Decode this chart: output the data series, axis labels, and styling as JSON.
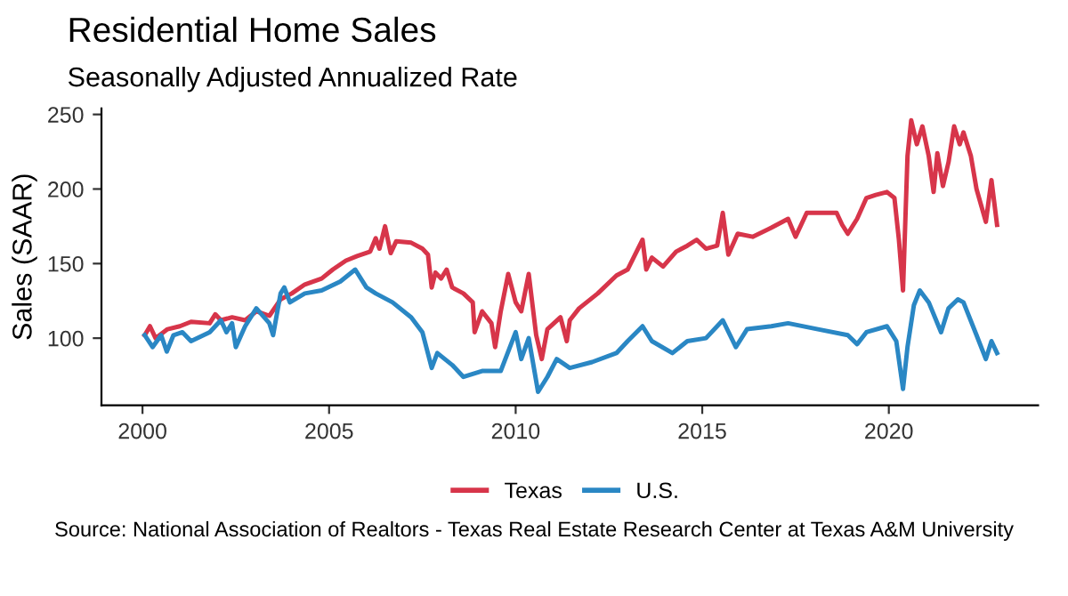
{
  "chart_data": {
    "type": "line",
    "title": "Residential Home Sales",
    "subtitle": "Seasonally Adjusted Annualized Rate",
    "ylabel": "Sales (SAAR)",
    "annotations": [
      "Source: National Association of Realtors - Texas Real Estate Research Center at Texas A&M University"
    ],
    "xlim": [
      1998.9,
      2024.0
    ],
    "ylim": [
      55,
      254
    ],
    "xticks": [
      2000,
      2005,
      2010,
      2015,
      2020
    ],
    "yticks": [
      100,
      150,
      200,
      250
    ],
    "grid": false,
    "legend": "bottom",
    "line_style": "solid",
    "marker": "none",
    "series": [
      {
        "name": "Texas",
        "color": "#d7354a",
        "x": [
          2000.06,
          2000.2,
          2000.35,
          2000.67,
          2001.0,
          2001.3,
          2001.8,
          2001.95,
          2002.1,
          2002.4,
          2002.75,
          2003.05,
          2003.4,
          2003.7,
          2004.0,
          2004.35,
          2004.8,
          2005.1,
          2005.45,
          2005.75,
          2006.1,
          2006.25,
          2006.35,
          2006.5,
          2006.65,
          2006.8,
          2007.2,
          2007.5,
          2007.65,
          2007.75,
          2007.85,
          2008.0,
          2008.15,
          2008.3,
          2008.6,
          2008.85,
          2008.9,
          2009.1,
          2009.35,
          2009.45,
          2009.6,
          2009.8,
          2010.0,
          2010.15,
          2010.35,
          2010.55,
          2010.7,
          2010.85,
          2011.2,
          2011.37,
          2011.45,
          2011.7,
          2012.2,
          2012.7,
          2013.0,
          2013.4,
          2013.5,
          2013.65,
          2013.95,
          2014.3,
          2014.6,
          2014.85,
          2015.1,
          2015.4,
          2015.55,
          2015.7,
          2015.95,
          2016.35,
          2016.85,
          2017.3,
          2017.5,
          2017.8,
          2018.1,
          2018.6,
          2018.75,
          2018.9,
          2019.15,
          2019.4,
          2019.65,
          2019.95,
          2020.15,
          2020.27,
          2020.38,
          2020.5,
          2020.6,
          2020.75,
          2020.9,
          2021.07,
          2021.2,
          2021.3,
          2021.45,
          2021.6,
          2021.75,
          2021.9,
          2022.0,
          2022.2,
          2022.35,
          2022.6,
          2022.75,
          2022.9
        ],
        "values": [
          102,
          108,
          100,
          106,
          108,
          111,
          110,
          116,
          112,
          114,
          112,
          118,
          115,
          126,
          130,
          136,
          140,
          146,
          152,
          155,
          158,
          167,
          160,
          175,
          157,
          165,
          164,
          160,
          156,
          134,
          144,
          140,
          146,
          134,
          130,
          124,
          104,
          118,
          110,
          94,
          118,
          143,
          124,
          118,
          143,
          102,
          86,
          106,
          114,
          98,
          112,
          120,
          130,
          142,
          146,
          166,
          146,
          154,
          148,
          158,
          162,
          166,
          160,
          162,
          184,
          156,
          170,
          168,
          174,
          180,
          168,
          184,
          184,
          184,
          176,
          170,
          180,
          194,
          196,
          198,
          194,
          166,
          132,
          222,
          246,
          230,
          242,
          222,
          198,
          224,
          202,
          218,
          242,
          230,
          238,
          222,
          200,
          178,
          206,
          176
        ]
      },
      {
        "name": "U.S.",
        "color": "#2a87c4",
        "x": [
          2000.06,
          2000.27,
          2000.5,
          2000.65,
          2000.83,
          2001.07,
          2001.3,
          2001.8,
          2002.1,
          2002.25,
          2002.4,
          2002.5,
          2002.75,
          2003.05,
          2003.4,
          2003.5,
          2003.7,
          2003.8,
          2003.95,
          2004.35,
          2004.8,
          2005.3,
          2005.7,
          2006.0,
          2006.25,
          2006.7,
          2007.2,
          2007.5,
          2007.75,
          2007.9,
          2008.3,
          2008.6,
          2009.1,
          2009.6,
          2010.0,
          2010.15,
          2010.35,
          2010.6,
          2010.85,
          2011.1,
          2011.45,
          2012.05,
          2012.7,
          2013.0,
          2013.4,
          2013.65,
          2014.2,
          2014.6,
          2015.1,
          2015.55,
          2015.9,
          2016.2,
          2016.85,
          2017.3,
          2018.1,
          2018.9,
          2019.15,
          2019.4,
          2019.95,
          2020.2,
          2020.38,
          2020.5,
          2020.67,
          2020.83,
          2021.07,
          2021.4,
          2021.6,
          2021.85,
          2022.0,
          2022.35,
          2022.6,
          2022.75,
          2022.9
        ],
        "values": [
          102,
          94,
          102,
          91,
          102,
          104,
          98,
          104,
          112,
          104,
          110,
          94,
          108,
          120,
          110,
          102,
          130,
          134,
          124,
          130,
          132,
          138,
          146,
          134,
          130,
          124,
          114,
          104,
          80,
          90,
          82,
          74,
          78,
          78,
          104,
          86,
          100,
          64,
          74,
          86,
          80,
          84,
          90,
          98,
          108,
          98,
          90,
          98,
          100,
          112,
          94,
          106,
          108,
          110,
          106,
          102,
          96,
          104,
          108,
          98,
          66,
          94,
          122,
          132,
          124,
          104,
          120,
          126,
          124,
          102,
          86,
          98,
          90
        ]
      }
    ]
  }
}
